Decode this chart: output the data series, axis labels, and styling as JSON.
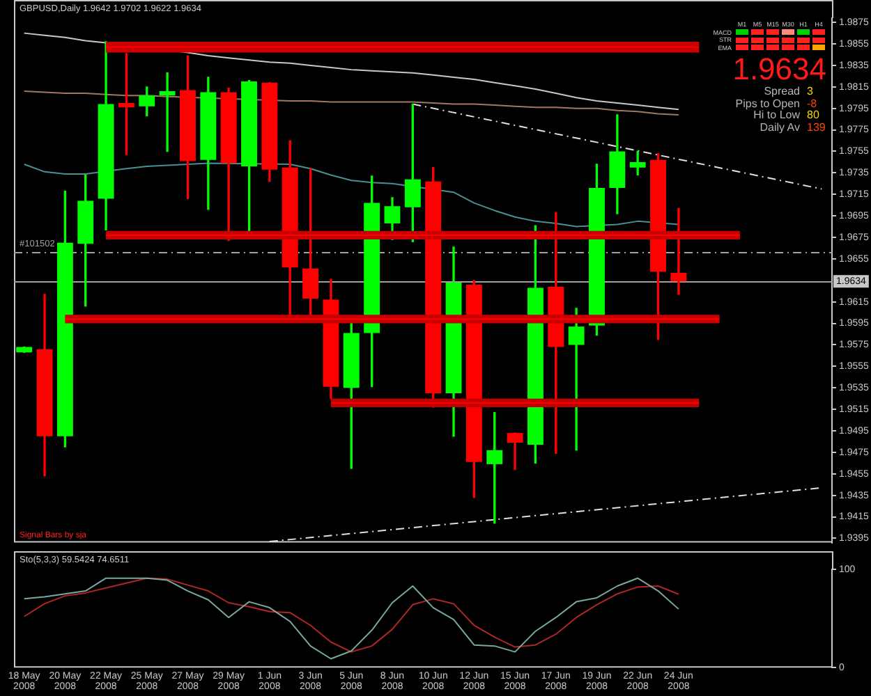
{
  "chart_data": [
    {
      "type": "candlestick",
      "title": "GBPUSD,Daily 1.9642 1.9702 1.9622 1.9634",
      "categories": [
        null,
        null,
        null,
        null,
        null,
        null,
        null,
        null,
        null,
        null,
        null,
        null,
        null,
        null,
        null,
        null,
        null,
        null,
        null,
        null,
        null,
        null,
        null,
        null,
        null,
        null,
        null,
        null,
        null,
        null,
        null,
        null,
        null,
        null,
        null,
        null,
        null,
        null,
        null,
        null
      ],
      "ohlc": [
        [
          1.9568,
          1.9573,
          1.9568,
          1.9573
        ],
        [
          1.9571,
          1.9622,
          1.9453,
          1.949
        ],
        [
          1.949,
          1.9718,
          1.948,
          1.967
        ],
        [
          1.9669,
          1.9733,
          1.9611,
          1.9709
        ],
        [
          1.9711,
          1.9857,
          1.9682,
          1.9799
        ],
        [
          1.98,
          1.9846,
          1.9752,
          1.9796
        ],
        [
          1.9797,
          1.9815,
          1.9788,
          1.9807
        ],
        [
          1.9807,
          1.9828,
          1.9755,
          1.9811
        ],
        [
          1.9812,
          1.9844,
          1.9711,
          1.9746
        ],
        [
          1.9747,
          1.9824,
          1.9701,
          1.981
        ],
        [
          1.981,
          1.9814,
          1.9672,
          1.9744
        ],
        [
          1.9741,
          1.9821,
          1.9681,
          1.982
        ],
        [
          1.9819,
          1.9819,
          1.9727,
          1.9738
        ],
        [
          1.974,
          1.9765,
          1.9603,
          1.9647
        ],
        [
          1.9646,
          1.9739,
          1.9603,
          1.9618
        ],
        [
          1.9617,
          1.9636,
          1.9525,
          1.9536
        ],
        [
          1.9535,
          1.9596,
          1.946,
          1.9586
        ],
        [
          1.9586,
          1.9732,
          1.9536,
          1.9707
        ],
        [
          1.9688,
          1.9712,
          1.9673,
          1.9704
        ],
        [
          1.9703,
          1.9799,
          1.9671,
          1.9729
        ],
        [
          1.9727,
          1.974,
          1.9517,
          1.953
        ],
        [
          1.953,
          1.9666,
          1.949,
          1.9633
        ],
        [
          1.9631,
          1.9635,
          1.9433,
          1.9466
        ],
        [
          1.9464,
          1.9512,
          1.9409,
          1.9477
        ],
        [
          1.9493,
          1.9493,
          1.9459,
          1.9484
        ],
        [
          1.9482,
          1.9686,
          1.9465,
          1.9628
        ],
        [
          1.9629,
          1.9698,
          1.9474,
          1.9573
        ],
        [
          1.9575,
          1.9609,
          1.9477,
          1.9592
        ],
        [
          1.9593,
          1.9743,
          1.9584,
          1.9721
        ],
        [
          1.9721,
          1.9789,
          1.9697,
          1.9755
        ],
        [
          1.974,
          1.9755,
          1.9733,
          1.9745
        ],
        [
          1.9747,
          1.9753,
          1.958,
          1.9643
        ],
        [
          1.9642,
          1.9702,
          1.9622,
          1.9634
        ],
        null,
        null,
        null,
        null,
        null,
        null,
        null
      ],
      "colors": [
        "#00ff00",
        "#ff0000",
        "#00ff00",
        "#00ff00",
        "#00ff00",
        "#ff0000",
        "#00ff00",
        "#00ff00",
        "#ff0000",
        "#00ff00",
        "#ff0000",
        "#00ff00",
        "#ff0000",
        "#ff0000",
        "#ff0000",
        "#ff0000",
        "#00ff00",
        "#00ff00",
        "#00ff00",
        "#00ff00",
        "#ff0000",
        "#00ff00",
        "#ff0000",
        "#00ff00",
        "#ff0000",
        "#00ff00",
        "#ff0000",
        "#00ff00",
        "#00ff00",
        "#00ff00",
        "#00ff00",
        "#ff0000",
        "#ff0000",
        null,
        null,
        null,
        null,
        null,
        null,
        null
      ],
      "series": [
        {
          "type": "line",
          "color": "#c8c8c8",
          "values": [
            1.9865,
            1.9863,
            1.9861,
            1.9858,
            1.9856,
            null,
            null,
            null,
            1.9847,
            1.9844,
            1.9842,
            1.984,
            1.9838,
            1.9837,
            1.9835,
            1.9833,
            1.9831,
            1.983,
            1.9829,
            1.9828,
            1.9826,
            1.9824,
            1.9822,
            1.9819,
            1.9816,
            1.9813,
            1.9809,
            1.9805,
            1.9802,
            1.98,
            1.9798,
            1.9796,
            1.9794,
            null,
            null,
            null,
            null,
            null,
            null,
            null
          ]
        },
        {
          "type": "line",
          "color": "#a07860",
          "values": [
            1.9811,
            1.981,
            1.9809,
            1.9809,
            1.9808,
            1.9807,
            1.9807,
            1.9806,
            null,
            null,
            null,
            null,
            null,
            1.9802,
            1.9802,
            1.9801,
            1.9801,
            1.9801,
            1.9801,
            1.9801,
            1.98,
            1.9799,
            1.9799,
            1.9798,
            1.9797,
            1.9796,
            1.9796,
            1.9795,
            1.9795,
            1.9793,
            1.9792,
            1.979,
            1.9789,
            null,
            null,
            null,
            null,
            null,
            null,
            null
          ]
        },
        {
          "type": "line",
          "color": "#4a9090",
          "values": [
            1.9743,
            1.9736,
            1.9734,
            1.9734,
            null,
            1.9739,
            1.9741,
            1.9742,
            1.9743,
            1.9744,
            null,
            null,
            null,
            1.9743,
            1.9739,
            1.9733,
            1.9728,
            1.9726,
            1.9725,
            null,
            null,
            1.9717,
            1.9707,
            1.97,
            1.9694,
            1.969,
            1.9688,
            1.9685,
            null,
            1.9687,
            1.969,
            null,
            1.9687,
            null,
            null,
            null,
            null,
            null,
            null,
            null
          ]
        },
        {
          "type": "line",
          "color": "#ff0000",
          "values": [
            null,
            null,
            null,
            null,
            1.9852,
            1.9852,
            1.9852,
            1.9852,
            1.9852,
            1.9852,
            1.9852,
            1.9852,
            1.9852,
            1.9852,
            1.9852,
            1.9852,
            1.9852,
            1.9852,
            1.9852,
            1.9852,
            1.9852,
            1.9852,
            1.9852,
            1.9852,
            1.9852,
            1.9852,
            1.9852,
            1.9852,
            1.9852,
            1.9852,
            1.9852,
            1.9852,
            1.9852,
            1.9852,
            null,
            null,
            null,
            null,
            null,
            null
          ],
          "lower": [
            null,
            null,
            null,
            null,
            1.9847,
            1.9847,
            1.9847,
            1.9847,
            1.9847,
            1.9847,
            1.9847,
            1.9847,
            1.9847,
            1.9847,
            1.9847,
            1.9847,
            1.9847,
            1.9847,
            1.9847,
            1.9847,
            1.9847,
            1.9847,
            1.9847,
            1.9847,
            1.9847,
            1.9847,
            1.9847,
            1.9847,
            1.9847,
            1.9847,
            1.9847,
            1.9847,
            1.9847,
            1.9847,
            null,
            null,
            null,
            null,
            null,
            null
          ],
          "upper": [
            null,
            null,
            null,
            null,
            1.9857,
            1.9857,
            1.9857,
            1.9857,
            1.9857,
            1.9857,
            1.9857,
            1.9857,
            1.9857,
            1.9857,
            1.9857,
            1.9857,
            1.9857,
            1.9857,
            1.9857,
            1.9857,
            1.9857,
            1.9857,
            1.9857,
            1.9857,
            1.9857,
            1.9857,
            1.9857,
            1.9857,
            1.9857,
            1.9857,
            1.9857,
            1.9857,
            1.9857,
            1.9857,
            null,
            null,
            null,
            null,
            null,
            null
          ]
        },
        {
          "type": "line",
          "color": "#ff0000",
          "values": [
            null,
            null,
            null,
            null,
            1.9677,
            1.9677,
            1.9677,
            1.9677,
            1.9677,
            1.9677,
            1.9677,
            1.9677,
            1.9677,
            1.9677,
            1.9677,
            1.9677,
            1.9677,
            1.9677,
            1.9677,
            1.9677,
            1.9677,
            1.9677,
            1.9677,
            1.9677,
            1.9677,
            1.9677,
            1.9677,
            1.9677,
            1.9677,
            1.9677,
            1.9677,
            1.9677,
            1.9677,
            1.9677,
            1.9677,
            1.9677,
            null,
            null,
            null,
            null
          ],
          "lower": [
            null,
            null,
            null,
            null,
            1.9673,
            1.9673,
            1.9673,
            1.9673,
            1.9673,
            1.9673,
            1.9673,
            1.9673,
            1.9673,
            1.9673,
            1.9673,
            1.9673,
            1.9673,
            1.9673,
            1.9673,
            1.9673,
            1.9673,
            1.9673,
            1.9673,
            1.9673,
            1.9673,
            1.9673,
            1.9673,
            1.9673,
            1.9673,
            1.9673,
            1.9673,
            1.9673,
            1.9673,
            1.9673,
            1.9673,
            1.9673,
            null,
            null,
            null,
            null
          ],
          "upper": [
            null,
            null,
            null,
            null,
            1.9681,
            1.9681,
            1.9681,
            1.9681,
            1.9681,
            1.9681,
            1.9681,
            1.9681,
            1.9681,
            1.9681,
            1.9681,
            1.9681,
            1.9681,
            1.9681,
            1.9681,
            1.9681,
            1.9681,
            1.9681,
            1.9681,
            1.9681,
            1.9681,
            1.9681,
            1.9681,
            1.9681,
            1.9681,
            1.9681,
            1.9681,
            1.9681,
            1.9681,
            1.9681,
            1.9681,
            1.9681,
            null,
            null,
            null,
            null
          ]
        },
        {
          "type": "line",
          "color": "#ff0000",
          "values": [
            null,
            null,
            1.9599,
            1.9599,
            1.9599,
            1.9599,
            1.9599,
            1.9599,
            1.9599,
            1.9599,
            1.9599,
            1.9599,
            1.9599,
            1.9599,
            1.9599,
            1.9599,
            1.9599,
            1.9599,
            1.9599,
            1.9599,
            1.9599,
            1.9599,
            1.9599,
            1.9599,
            1.9599,
            1.9599,
            1.9599,
            1.9599,
            1.9599,
            1.9599,
            1.9599,
            1.9599,
            1.9599,
            1.9599,
            1.9599,
            null,
            null,
            null,
            null,
            null
          ],
          "lower": [
            null,
            null,
            1.9595,
            1.9595,
            1.9595,
            1.9595,
            1.9595,
            1.9595,
            1.9595,
            1.9595,
            1.9595,
            1.9595,
            1.9595,
            1.9595,
            1.9595,
            1.9595,
            1.9595,
            1.9595,
            1.9595,
            1.9595,
            1.9595,
            1.9595,
            1.9595,
            1.9595,
            1.9595,
            1.9595,
            1.9595,
            1.9595,
            1.9595,
            1.9595,
            1.9595,
            1.9595,
            1.9595,
            1.9595,
            1.9595,
            null,
            null,
            null,
            null,
            null
          ],
          "upper": [
            null,
            null,
            1.9603,
            1.9603,
            1.9603,
            1.9603,
            1.9603,
            1.9603,
            1.9603,
            1.9603,
            1.9603,
            1.9603,
            1.9603,
            1.9603,
            1.9603,
            1.9603,
            1.9603,
            1.9603,
            1.9603,
            1.9603,
            1.9603,
            1.9603,
            1.9603,
            1.9603,
            1.9603,
            1.9603,
            1.9603,
            1.9603,
            1.9603,
            1.9603,
            1.9603,
            1.9603,
            1.9603,
            1.9603,
            1.9603,
            null,
            null,
            null,
            null,
            null
          ]
        },
        {
          "type": "line",
          "color": "#ff0000",
          "values": [
            null,
            null,
            null,
            null,
            null,
            null,
            null,
            null,
            null,
            null,
            null,
            null,
            null,
            null,
            null,
            1.9521,
            1.9521,
            1.9521,
            1.9521,
            1.9521,
            1.9521,
            1.9521,
            1.9521,
            1.9521,
            1.9521,
            1.9521,
            1.9521,
            1.9521,
            1.9521,
            1.9521,
            1.9521,
            1.9521,
            1.9521,
            1.9521,
            null,
            null,
            null,
            null,
            null,
            null
          ],
          "lower": [
            null,
            null,
            null,
            null,
            null,
            null,
            null,
            null,
            null,
            null,
            null,
            null,
            null,
            null,
            null,
            1.9517,
            1.9517,
            1.9517,
            1.9517,
            1.9517,
            1.9517,
            1.9517,
            1.9517,
            1.9517,
            1.9517,
            1.9517,
            1.9517,
            1.9517,
            1.9517,
            1.9517,
            1.9517,
            1.9517,
            1.9517,
            1.9517,
            null,
            null,
            null,
            null,
            null,
            null
          ],
          "upper": [
            null,
            null,
            null,
            null,
            null,
            null,
            null,
            null,
            null,
            null,
            null,
            null,
            null,
            null,
            null,
            1.9525,
            1.9525,
            1.9525,
            1.9525,
            1.9525,
            1.9525,
            1.9525,
            1.9525,
            1.9525,
            1.9525,
            1.9525,
            1.9525,
            1.9525,
            1.9525,
            1.9525,
            1.9525,
            1.9525,
            1.9525,
            1.9525,
            null,
            null,
            null,
            null,
            null,
            null
          ]
        },
        {
          "type": "line",
          "color": "#e0e0e0",
          "line_style": "dashed",
          "values": [
            null,
            null,
            null,
            null,
            null,
            null,
            null,
            null,
            null,
            null,
            null,
            null,
            null,
            null,
            null,
            null,
            null,
            null,
            null,
            1.9799,
            null,
            null,
            null,
            null,
            null,
            null,
            null,
            null,
            null,
            null,
            null,
            null,
            null,
            null,
            null,
            null,
            null,
            null,
            null,
            1.972
          ]
        },
        {
          "type": "line",
          "color": "#e0e0e0",
          "line_style": "dashed",
          "values": [
            null,
            null,
            null,
            null,
            null,
            null,
            null,
            null,
            null,
            null,
            null,
            null,
            1.9392,
            null,
            null,
            null,
            null,
            null,
            null,
            null,
            null,
            null,
            null,
            null,
            null,
            null,
            null,
            null,
            null,
            null,
            null,
            null,
            null,
            null,
            null,
            null,
            null,
            null,
            null,
            1.9442
          ]
        }
      ],
      "ylim": [
        1.9391,
        1.9879
      ],
      "yticks": [
        1.9395,
        1.9415,
        1.9435,
        1.9455,
        1.9475,
        1.9495,
        1.9515,
        1.9535,
        1.9555,
        1.9575,
        1.9595,
        1.9615,
        1.9655,
        1.9675,
        1.9695,
        1.9715,
        1.9735,
        1.9755,
        1.9775,
        1.9795,
        1.9815,
        1.9835,
        1.9855,
        1.9875
      ],
      "tick_labels": "y",
      "ref_lines": [
        {
          "axis": "y",
          "value": 1.9661,
          "color": "#a0a0a0",
          "line_style": "dashed"
        },
        {
          "axis": "y",
          "value": 1.9634,
          "label": "1.9634",
          "color": "#a0a0a0"
        }
      ],
      "annotations": [
        "M1",
        "M5",
        "M15",
        "M30",
        "H1",
        "H4",
        "MACD",
        "STR",
        "EMA",
        "1.9634",
        "Spread",
        "3",
        "Pips to Open",
        "-8",
        "Hi to Low",
        "80",
        "Daily Av",
        "139",
        "Signal Bars by sja",
        {
          "text": "#101502",
          "y": 1.9661
        }
      ]
    },
    {
      "type": "line",
      "title": "Sto(5,3,3) 59.5424 74.6511",
      "categories": [
        "18 May 2008",
        null,
        "20 May 2008",
        null,
        "22 May 2008",
        null,
        "25 May 2008",
        null,
        "27 May 2008",
        null,
        "29 May 2008",
        null,
        "1 Jun 2008",
        null,
        "3 Jun 2008",
        null,
        "5 Jun 2008",
        null,
        "8 Jun 2008",
        null,
        "10 Jun 2008",
        null,
        "12 Jun 2008",
        null,
        "15 Jun 2008",
        null,
        "17 Jun 2008",
        null,
        "19 Jun 2008",
        null,
        "22 Jun 2008",
        null,
        "24 Jun 2008",
        null,
        null,
        null,
        null,
        null,
        null,
        null
      ],
      "series": [
        {
          "color": "#78a8a0",
          "values": [
            70,
            72,
            75,
            78,
            91,
            91,
            91,
            89,
            78,
            69,
            51,
            67,
            61,
            47,
            22,
            9,
            17,
            38,
            66,
            83,
            61,
            49,
            23,
            22,
            16,
            37,
            51,
            67,
            71,
            83,
            91,
            78,
            59.5424,
            null,
            null,
            null,
            null,
            null,
            null,
            null
          ]
        },
        {
          "color": "#b02525",
          "values": [
            52,
            65,
            73,
            76,
            81,
            86,
            91,
            90,
            84,
            78,
            66,
            62,
            57,
            56,
            43,
            26,
            16,
            22,
            39,
            64,
            70,
            65,
            43,
            31,
            21,
            23,
            34,
            51,
            64,
            75,
            82,
            83,
            74.6511,
            null,
            null,
            null,
            null,
            null,
            null,
            null
          ]
        }
      ],
      "ylim": [
        0,
        100
      ],
      "yticks": [
        0,
        100
      ]
    }
  ]
}
